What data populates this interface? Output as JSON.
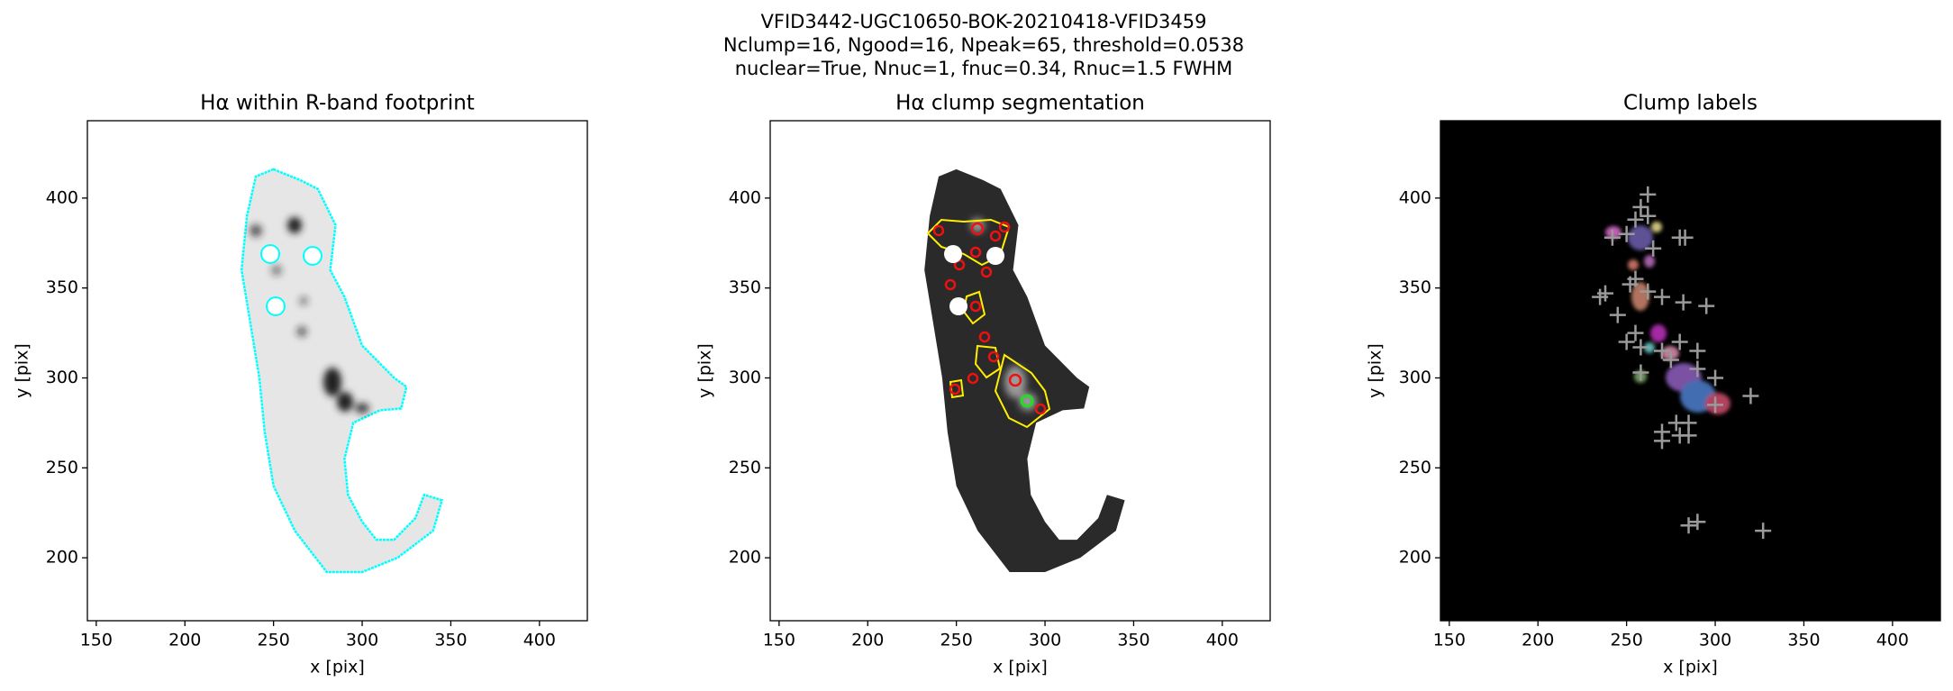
{
  "title": [
    "VFID3442-UGC10650-BOK-20210418-VFID3459",
    "Nclump=16, Ngood=16, Npeak=65, threshold=0.0538",
    "nuclear=True, Nnuc=1, fnuc=0.34, Rnuc=1.5 FWHM"
  ],
  "chart_data": [
    {
      "type": "image",
      "title": "Hα within R-band footprint",
      "xlabel": "x [pix]",
      "ylabel": "y [pix]",
      "xlim": [
        145,
        427
      ],
      "ylim": [
        165,
        443
      ],
      "xticks": [
        150,
        200,
        250,
        300,
        350,
        400
      ],
      "yticks": [
        200,
        250,
        300,
        350,
        400
      ]
    },
    {
      "type": "image",
      "title": "Hα clump segmentation",
      "xlabel": "x [pix]",
      "ylabel": "y [pix]",
      "xlim": [
        145,
        427
      ],
      "ylim": [
        165,
        443
      ],
      "xticks": [
        150,
        200,
        250,
        300,
        350,
        400
      ],
      "yticks": [
        200,
        250,
        300,
        350,
        400
      ]
    },
    {
      "type": "image",
      "title": "Clump labels",
      "xlabel": "x [pix]",
      "ylabel": "y [pix]",
      "xlim": [
        145,
        427
      ],
      "ylim": [
        165,
        443
      ],
      "xticks": [
        150,
        200,
        250,
        300,
        350,
        400
      ],
      "yticks": [
        200,
        250,
        300,
        350,
        400
      ],
      "marker_color": "#9a9a9a",
      "x": [
        262,
        258,
        255,
        262,
        242,
        250,
        280,
        283,
        265,
        255,
        252,
        262,
        238,
        235,
        245,
        270,
        282,
        295,
        255,
        250,
        258,
        270,
        280,
        290,
        275,
        290,
        300,
        258,
        320,
        300,
        278,
        285,
        270,
        280,
        285,
        270,
        285,
        290,
        327
      ],
      "y": [
        402,
        395,
        388,
        390,
        378,
        380,
        378,
        378,
        372,
        355,
        352,
        348,
        347,
        345,
        335,
        345,
        342,
        340,
        325,
        320,
        317,
        315,
        320,
        315,
        310,
        305,
        300,
        303,
        290,
        285,
        275,
        275,
        270,
        268,
        268,
        265,
        218,
        220,
        215
      ]
    }
  ]
}
